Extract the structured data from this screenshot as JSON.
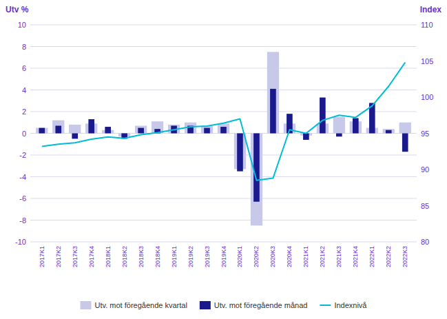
{
  "chart_data": {
    "type": "bar",
    "y_label": "Utv %",
    "y2_label": "Index",
    "categories": [
      "2017K1",
      "2017K2",
      "2017K3",
      "2017K4",
      "2018K1",
      "2018K2",
      "2018K3",
      "2018K4",
      "2019K1",
      "2019K2",
      "2019K3",
      "2019K4",
      "2020K1",
      "2020K2",
      "2020K3",
      "2020K4",
      "2021K1",
      "2021K2",
      "2021K3",
      "2021K4",
      "2022K1",
      "2022K2",
      "2022K3"
    ],
    "series": [
      {
        "name": "Utv. mot föregående kvartal",
        "type": "bar",
        "color": "#c8c8e8",
        "values": [
          0.5,
          1.2,
          0.8,
          0.9,
          0.3,
          -0.3,
          0.7,
          1.1,
          0.8,
          1.0,
          0.7,
          0.9,
          -3.3,
          -8.5,
          7.5,
          0.9,
          -0.2,
          0.9,
          1.5,
          1.1,
          0.5,
          0.4,
          1.0
        ]
      },
      {
        "name": "Utv. mot föregående månad",
        "type": "bar",
        "color": "#1a1a8c",
        "values": [
          0.5,
          0.7,
          -0.5,
          1.3,
          0.6,
          -0.5,
          0.5,
          0.4,
          0.7,
          0.7,
          0.5,
          0.6,
          -3.5,
          -6.3,
          4.1,
          1.8,
          -0.6,
          3.3,
          -0.3,
          1.4,
          2.8,
          0.3,
          -1.7
        ]
      },
      {
        "name": "Indexnivå",
        "type": "line",
        "axis": "y2",
        "color": "#00bcd4",
        "values": [
          93.2,
          93.5,
          93.7,
          94.2,
          94.5,
          94.3,
          94.8,
          95.1,
          95.5,
          95.9,
          96.0,
          96.4,
          97.0,
          88.5,
          88.8,
          95.5,
          95.0,
          96.8,
          97.5,
          97.2,
          98.8,
          101.5,
          104.8
        ]
      }
    ],
    "ylim": [
      -10,
      10
    ],
    "yticks": [
      -10,
      -8,
      -6,
      -4,
      -2,
      0,
      2,
      4,
      6,
      8,
      10
    ],
    "y2lim": [
      80,
      110
    ],
    "y2ticks": [
      80,
      85,
      90,
      95,
      100,
      105,
      110
    ],
    "grid": true,
    "legend": "bottom"
  }
}
